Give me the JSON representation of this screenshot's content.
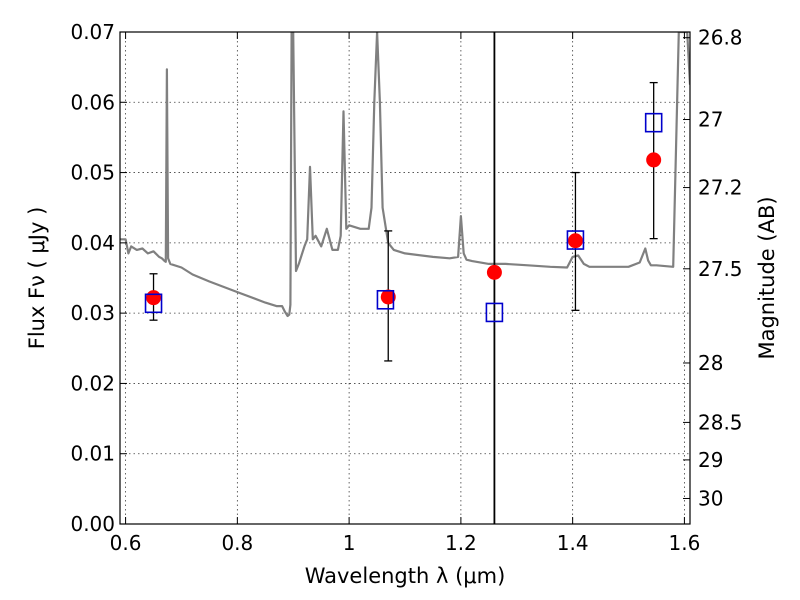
{
  "chart_data": {
    "type": "scatter",
    "title": "",
    "xlabel": "Wavelength  λ (μm)",
    "ylabel": "Flux  Fν  ( μJy )",
    "ylabel_right": "Magnitude (AB)",
    "xlim": [
      0.59,
      1.61
    ],
    "ylim": [
      0.0,
      0.07
    ],
    "grid": true,
    "x_ticks": [
      0.6,
      0.8,
      1.0,
      1.2,
      1.4,
      1.6
    ],
    "x_tick_labels": [
      "0.6",
      "0.8",
      "1",
      "1.2",
      "1.4",
      "1.6"
    ],
    "y_ticks": [
      0.0,
      0.01,
      0.02,
      0.03,
      0.04,
      0.05,
      0.06,
      0.07
    ],
    "y_tick_labels": [
      "0.00",
      "0.01",
      "0.02",
      "0.03",
      "0.04",
      "0.05",
      "0.06",
      "0.07"
    ],
    "right_ticks": [
      26.8,
      27,
      27.2,
      27.5,
      28,
      28.5,
      29,
      30
    ],
    "right_tick_labels": [
      "26.8",
      "27",
      "27.2",
      "27.5",
      "28",
      "28.5",
      "29",
      "30"
    ],
    "vertical_line_x": 1.26,
    "series": [
      {
        "kind": "observed",
        "marker": "circle",
        "color": "#ff0000",
        "x": [
          0.65,
          1.07,
          1.26,
          1.405,
          1.545
        ],
        "y": [
          0.0322,
          0.0323,
          0.0358,
          0.0403,
          0.0518
        ]
      },
      {
        "kind": "error_bars",
        "color": "#000000",
        "x": [
          0.65,
          1.07,
          1.405,
          1.545
        ],
        "lower": [
          0.029,
          0.0232,
          0.0304,
          0.0406
        ],
        "upper": [
          0.0356,
          0.0417,
          0.05,
          0.0628
        ]
      },
      {
        "kind": "model",
        "marker": "open-square",
        "color": "#0000cc",
        "x": [
          0.65,
          1.065,
          1.26,
          1.405,
          1.545
        ],
        "y": [
          0.0314,
          0.0319,
          0.0301,
          0.0404,
          0.0571
        ]
      },
      {
        "kind": "spectrum",
        "color": "#808080",
        "x": [
          0.59,
          0.6,
          0.605,
          0.61,
          0.62,
          0.63,
          0.64,
          0.65,
          0.66,
          0.665,
          0.67,
          0.672,
          0.674,
          0.676,
          0.68,
          0.7,
          0.72,
          0.75,
          0.8,
          0.85,
          0.87,
          0.88,
          0.885,
          0.89,
          0.893,
          0.895,
          0.897,
          0.9,
          0.905,
          0.91,
          0.92,
          0.925,
          0.93,
          0.935,
          0.94,
          0.95,
          0.96,
          0.97,
          0.98,
          0.985,
          0.99,
          0.995,
          1.0,
          1.02,
          1.035,
          1.04,
          1.045,
          1.05,
          1.055,
          1.06,
          1.07,
          1.08,
          1.1,
          1.15,
          1.18,
          1.195,
          1.2,
          1.205,
          1.21,
          1.22,
          1.25,
          1.28,
          1.32,
          1.36,
          1.39,
          1.4,
          1.41,
          1.42,
          1.43,
          1.46,
          1.5,
          1.52,
          1.53,
          1.535,
          1.54,
          1.55,
          1.58,
          1.59,
          1.595,
          1.6,
          1.605,
          1.61
        ],
        "y": [
          0.0405,
          0.0405,
          0.0385,
          0.0395,
          0.039,
          0.0392,
          0.0385,
          0.0388,
          0.038,
          0.0378,
          0.0374,
          0.0373,
          0.0647,
          0.0378,
          0.037,
          0.0365,
          0.0355,
          0.0345,
          0.033,
          0.0315,
          0.031,
          0.031,
          0.0302,
          0.0296,
          0.0298,
          0.0312,
          0.07,
          0.07,
          0.036,
          0.037,
          0.0395,
          0.0405,
          0.0508,
          0.0405,
          0.041,
          0.0395,
          0.042,
          0.039,
          0.039,
          0.041,
          0.0587,
          0.042,
          0.0425,
          0.042,
          0.042,
          0.045,
          0.06,
          0.07,
          0.06,
          0.045,
          0.04,
          0.039,
          0.0385,
          0.038,
          0.0378,
          0.038,
          0.0438,
          0.0385,
          0.0376,
          0.0374,
          0.037,
          0.037,
          0.0368,
          0.0366,
          0.0365,
          0.038,
          0.0382,
          0.037,
          0.0366,
          0.0366,
          0.0366,
          0.0372,
          0.0392,
          0.0375,
          0.0368,
          0.0368,
          0.0366,
          0.07,
          0.07,
          0.07,
          0.07,
          0.0625
        ]
      }
    ]
  }
}
